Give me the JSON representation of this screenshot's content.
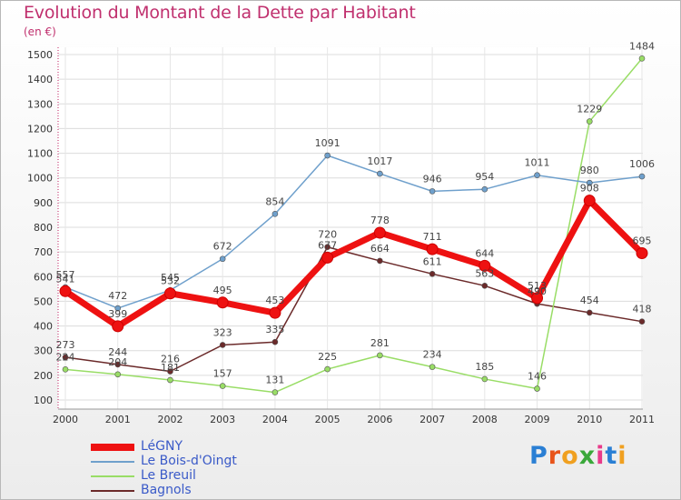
{
  "header": {
    "title": "Evolution du Montant de la Dette par Habitant",
    "subtitle": "(en €)"
  },
  "brand": {
    "letters": [
      "P",
      "r",
      "o",
      "x",
      "i",
      "t",
      "i"
    ],
    "colors": [
      "#2a7fd4",
      "#e8541a",
      "#f0a020",
      "#3aa83a",
      "#e83a8a",
      "#2a7fd4",
      "#f0a020"
    ]
  },
  "chart_data": {
    "type": "line",
    "title": "Evolution du Montant de la Dette par Habitant",
    "subtitle": "(en €)",
    "xlabel": "",
    "ylabel": "",
    "x": [
      "2000",
      "2001",
      "2002",
      "2003",
      "2004",
      "2005",
      "2006",
      "2007",
      "2008",
      "2009",
      "2010",
      "2011"
    ],
    "ylim": [
      100,
      1500
    ],
    "yticks": [
      100,
      200,
      300,
      400,
      500,
      600,
      700,
      800,
      900,
      1000,
      1100,
      1200,
      1300,
      1400,
      1500
    ],
    "grid": true,
    "legend": "bottom-left",
    "series": [
      {
        "name": "LéGNY",
        "color": "#ee1111",
        "values": [
          541,
          399,
          532,
          495,
          453,
          677,
          778,
          711,
          644,
          513,
          908,
          695
        ]
      },
      {
        "name": "Le Bois-d'Oingt",
        "color": "#6fa0cc",
        "values": [
          557,
          472,
          545,
          672,
          854,
          1091,
          1017,
          946,
          954,
          1011,
          980,
          1006
        ]
      },
      {
        "name": "Le Breuil",
        "color": "#99dd66",
        "values": [
          224,
          204,
          181,
          157,
          131,
          225,
          281,
          234,
          185,
          146,
          1229,
          1484
        ]
      },
      {
        "name": "Bagnols",
        "color": "#6b2a2a",
        "values": [
          273,
          244,
          216,
          323,
          335,
          720,
          664,
          611,
          563,
          490,
          454,
          418
        ]
      }
    ]
  }
}
